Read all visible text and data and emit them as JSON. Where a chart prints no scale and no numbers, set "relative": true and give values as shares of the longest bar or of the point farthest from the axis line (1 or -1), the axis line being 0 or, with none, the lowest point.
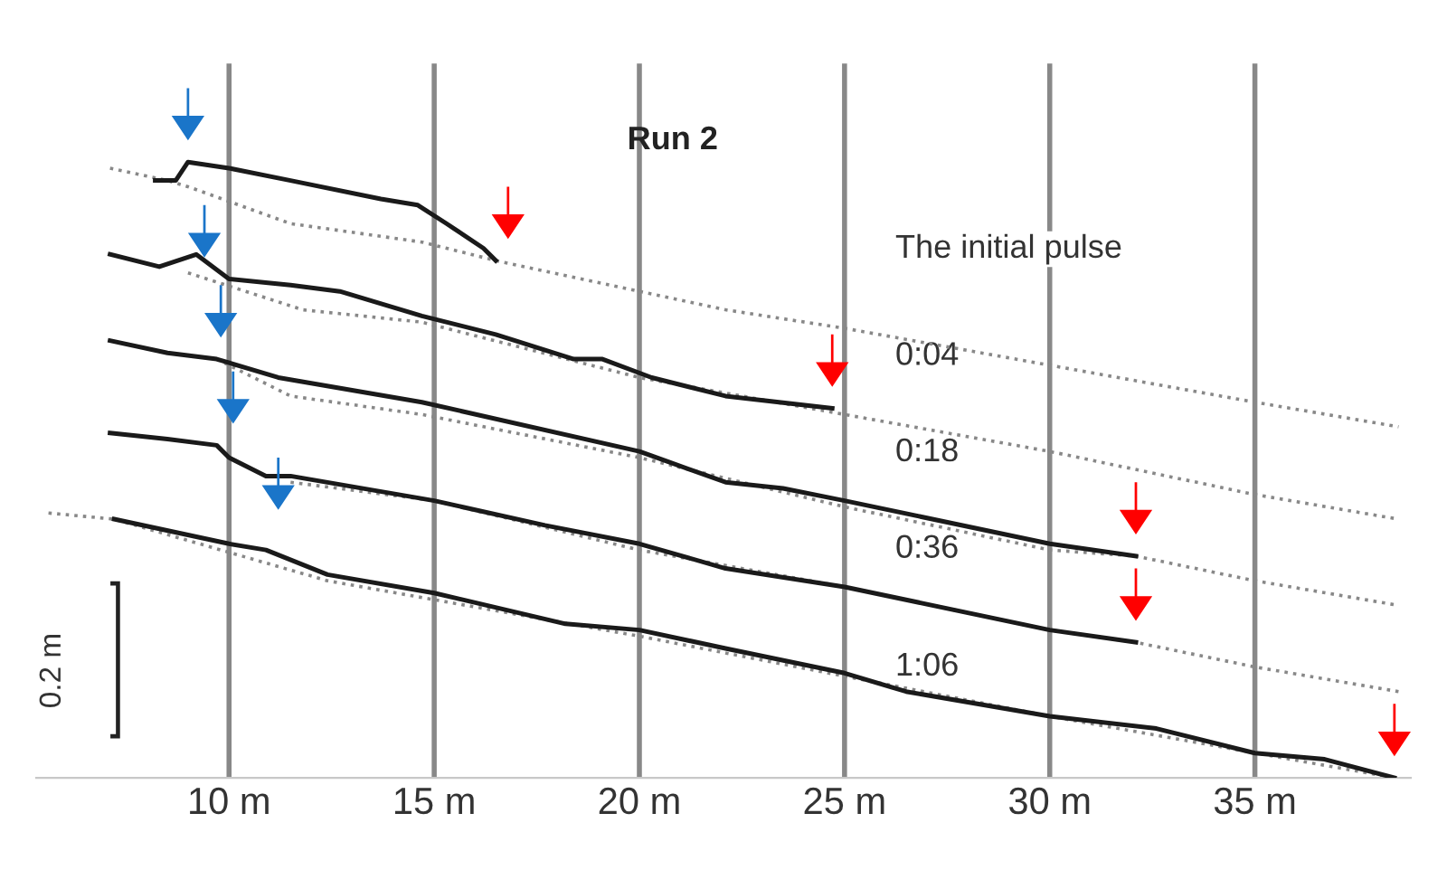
{
  "chart_data": {
    "type": "line",
    "title": "Run 2",
    "relative": true,
    "xticks": [
      {
        "value": 10,
        "label": "10 m"
      },
      {
        "value": 15,
        "label": "15 m"
      },
      {
        "value": 20,
        "label": "20 m"
      },
      {
        "value": 25,
        "label": "25 m"
      },
      {
        "value": 30,
        "label": "30 m"
      },
      {
        "value": 35,
        "label": "35 m"
      }
    ],
    "xlim": [
      5.3,
      38.8
    ],
    "tick_labels": "x",
    "grid": "x",
    "series": [
      {
        "color": "#888888",
        "line_style": "dotted",
        "x": [
          7.1,
          8.5,
          9.0,
          11.5,
          14.7,
          16.5,
          20.0,
          22.1,
          25.0,
          30.0,
          35.0,
          38.5
        ],
        "values": [
          0.99,
          0.97,
          0.96,
          0.9,
          0.87,
          0.84,
          0.79,
          0.76,
          0.73,
          0.67,
          0.61,
          0.57
        ]
      },
      {
        "color": "#1a1a1a",
        "line_style": "solid",
        "x": [
          8.2,
          8.7,
          9.0,
          10.0,
          11.5,
          13.7,
          14.6,
          15.3,
          16.2,
          16.5
        ],
        "values": [
          0.97,
          0.97,
          1.0,
          0.99,
          0.97,
          0.94,
          0.93,
          0.9,
          0.86,
          0.84
        ]
      },
      {
        "color": "#888888",
        "line_style": "dotted",
        "x": [
          9.0,
          11.8,
          14.7,
          20.0,
          25.0,
          30.0,
          35.0,
          38.5
        ],
        "values": [
          0.82,
          0.76,
          0.74,
          0.65,
          0.59,
          0.53,
          0.46,
          0.42
        ]
      },
      {
        "color": "#1a1a1a",
        "line_style": "solid",
        "x": [
          7.1,
          8.3,
          9.2,
          10.0,
          11.5,
          12.7,
          14.7,
          16.5,
          18.4,
          19.1,
          20.3,
          22.1,
          24.7
        ],
        "values": [
          0.85,
          0.83,
          0.85,
          0.81,
          0.8,
          0.79,
          0.75,
          0.72,
          0.68,
          0.68,
          0.65,
          0.62,
          0.6
        ]
      },
      {
        "color": "#888888",
        "line_style": "dotted",
        "x": [
          9.7,
          11.5,
          14.7,
          20.0,
          25.0,
          30.0,
          32.1,
          35.0,
          38.5
        ],
        "values": [
          0.68,
          0.62,
          0.59,
          0.52,
          0.44,
          0.37,
          0.36,
          0.32,
          0.28
        ]
      },
      {
        "color": "#1a1a1a",
        "line_style": "solid",
        "x": [
          7.1,
          8.5,
          9.7,
          11.2,
          14.7,
          20.0,
          22.1,
          23.5,
          25.0,
          30.0,
          32.1
        ],
        "values": [
          0.71,
          0.69,
          0.68,
          0.65,
          0.61,
          0.53,
          0.48,
          0.47,
          0.45,
          0.38,
          0.36
        ]
      },
      {
        "color": "#888888",
        "line_style": "dotted",
        "x": [
          11.5,
          15.0,
          20.0,
          25.0,
          30.0,
          32.1,
          35.0,
          38.5
        ],
        "values": [
          0.48,
          0.45,
          0.37,
          0.31,
          0.24,
          0.22,
          0.18,
          0.14
        ]
      },
      {
        "color": "#1a1a1a",
        "line_style": "solid",
        "x": [
          7.1,
          8.5,
          9.7,
          10.0,
          10.9,
          11.5,
          15.0,
          17.7,
          20.0,
          22.1,
          25.0,
          30.0,
          32.1
        ],
        "values": [
          0.56,
          0.55,
          0.54,
          0.52,
          0.49,
          0.49,
          0.45,
          0.41,
          0.38,
          0.34,
          0.31,
          0.24,
          0.22
        ]
      },
      {
        "color": "#888888",
        "line_style": "dotted",
        "x": [
          5.6,
          7.2,
          12.4,
          20.0,
          30.0,
          38.4
        ],
        "values": [
          0.43,
          0.42,
          0.32,
          0.23,
          0.1,
          0.0
        ]
      },
      {
        "color": "#1a1a1a",
        "line_style": "solid",
        "x": [
          7.2,
          10.0,
          10.9,
          12.4,
          15.0,
          18.2,
          20.0,
          22.1,
          25.0,
          26.5,
          30.0,
          32.6,
          35.0,
          36.7,
          38.4
        ],
        "values": [
          0.42,
          0.38,
          0.37,
          0.33,
          0.3,
          0.25,
          0.24,
          0.21,
          0.17,
          0.14,
          0.1,
          0.08,
          0.04,
          0.03,
          0.0
        ]
      }
    ],
    "annotations": [
      "The initial pulse",
      "0:04",
      "0:18",
      "0:36",
      "1:06",
      "0.2 m"
    ]
  }
}
